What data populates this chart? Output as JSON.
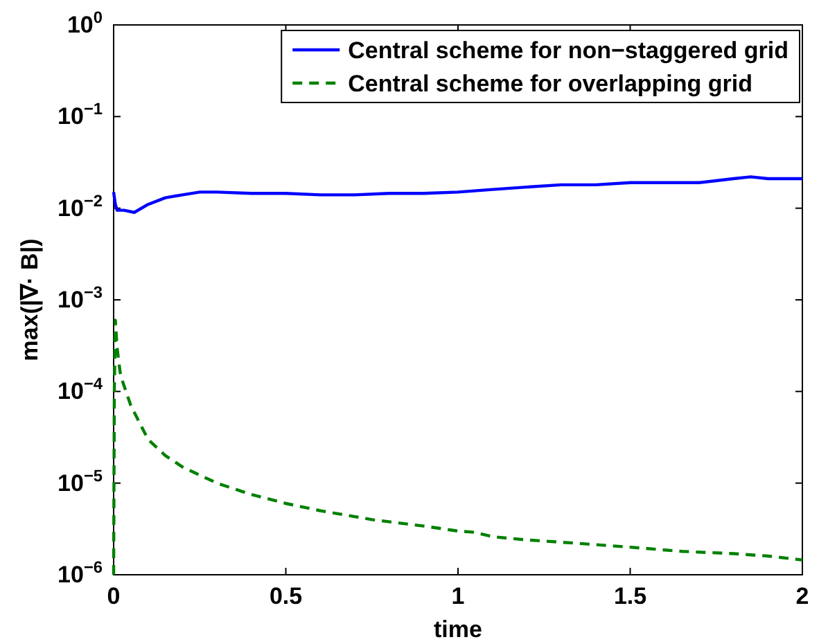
{
  "chart_data": {
    "type": "line",
    "xlabel": "time",
    "ylabel": "max(|∇· B|)",
    "log": "y",
    "xlim": [
      0,
      2
    ],
    "ylim": [
      1e-06,
      1
    ],
    "xticks": [
      0,
      0.5,
      1,
      1.5,
      2
    ],
    "yticks": [
      {
        "value": 1e-06,
        "label": "10$^{−6}$"
      },
      {
        "value": 1e-05,
        "label": "10$^{−5}$"
      },
      {
        "value": 0.0001,
        "label": "10$^{−4}$"
      },
      {
        "value": 0.001,
        "label": "10$^{−3}$"
      },
      {
        "value": 0.01,
        "label": "10$^{−2}$"
      },
      {
        "value": 0.1,
        "label": "10$^{−1}$"
      },
      {
        "value": 1,
        "label": "10$^{0}$"
      }
    ],
    "grid": false,
    "legend": "top right",
    "series": [
      {
        "name": "Central scheme for non−staggered grid",
        "color": "#0000ff",
        "line_style": "solid",
        "x": [
          0,
          0.005,
          0.01,
          0.03,
          0.06,
          0.1,
          0.15,
          0.2,
          0.25,
          0.3,
          0.4,
          0.5,
          0.6,
          0.7,
          0.8,
          0.9,
          1.0,
          1.1,
          1.2,
          1.3,
          1.4,
          1.5,
          1.6,
          1.7,
          1.8,
          1.85,
          1.9,
          2.0
        ],
        "values": [
          0.015,
          0.011,
          0.0095,
          0.0095,
          0.009,
          0.011,
          0.013,
          0.014,
          0.015,
          0.015,
          0.0145,
          0.0145,
          0.014,
          0.014,
          0.0145,
          0.0145,
          0.015,
          0.016,
          0.017,
          0.018,
          0.018,
          0.019,
          0.019,
          0.019,
          0.021,
          0.022,
          0.021,
          0.021
        ]
      },
      {
        "name": "Central scheme for overlapping grid",
        "color": "#008000",
        "line_style": "dashed",
        "x": [
          0,
          0.002,
          0.005,
          0.01,
          0.02,
          0.05,
          0.1,
          0.15,
          0.2,
          0.3,
          0.4,
          0.5,
          0.6,
          0.75,
          0.9,
          1.0,
          1.05,
          1.1,
          1.2,
          1.35,
          1.5,
          1.65,
          1.8,
          1.9,
          2.0
        ],
        "values": [
          1e-06,
          0.0001,
          0.0006,
          0.0003,
          0.00015,
          7e-05,
          3e-05,
          2e-05,
          1.5e-05,
          1e-05,
          7.5e-06,
          6e-06,
          5e-06,
          4e-06,
          3.4e-06,
          3e-06,
          2.9e-06,
          2.6e-06,
          2.4e-06,
          2.2e-06,
          2e-06,
          1.8e-06,
          1.7e-06,
          1.6e-06,
          1.45e-06
        ]
      }
    ]
  }
}
